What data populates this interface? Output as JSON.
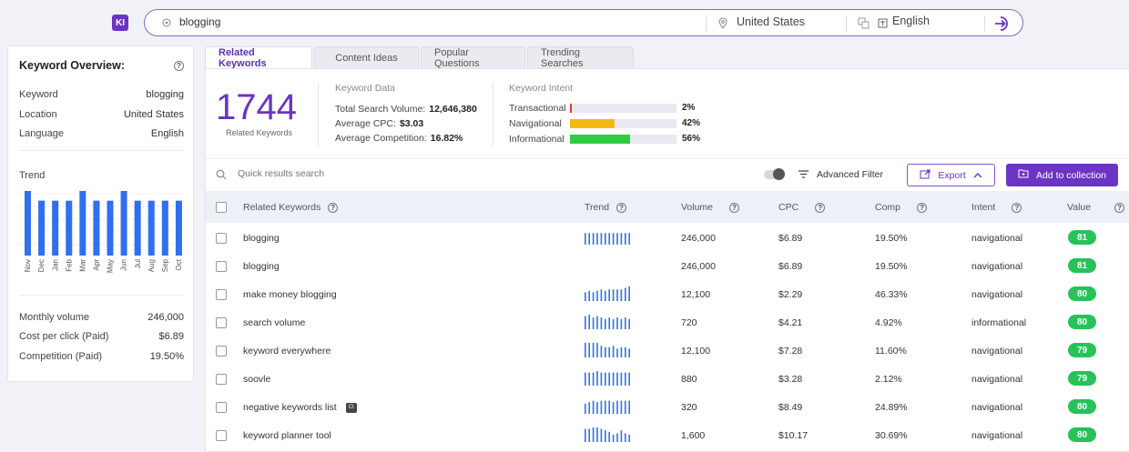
{
  "header": {
    "logo_text": "KI",
    "query": "blogging",
    "location": "United States",
    "language": "English"
  },
  "overview": {
    "title": "Keyword Overview:",
    "rows": [
      {
        "label": "Keyword",
        "value": "blogging"
      },
      {
        "label": "Location",
        "value": "United States"
      },
      {
        "label": "Language",
        "value": "English"
      }
    ],
    "trend_title": "Trend",
    "trend_months": [
      "Nov",
      "Dec",
      "Jan",
      "Feb",
      "Mar",
      "Apr",
      "May",
      "Jun",
      "Jul",
      "Aug",
      "Sep",
      "Oct"
    ],
    "trend_values": [
      100,
      85,
      85,
      85,
      100,
      85,
      85,
      100,
      85,
      85,
      85,
      85
    ],
    "metrics": [
      {
        "label": "Monthly volume",
        "value": "246,000"
      },
      {
        "label": "Cost per click (Paid)",
        "value": "$6.89"
      },
      {
        "label": "Competition (Paid)",
        "value": "19.50%"
      }
    ]
  },
  "tabs": [
    "Related Keywords",
    "Content Ideas",
    "Popular Questions",
    "Trending Searches"
  ],
  "summary": {
    "count": "1744",
    "count_label": "Related Keywords",
    "data_title": "Keyword Data",
    "data_rows": [
      {
        "label": "Total Search Volume:",
        "value": "12,646,380"
      },
      {
        "label": "Average CPC:",
        "value": "$3.03"
      },
      {
        "label": "Average Competition:",
        "value": "16.82%"
      }
    ],
    "intent_title": "Keyword Intent",
    "intent_rows": [
      {
        "label": "Transactional",
        "pct": "2%",
        "fraction": 0.02,
        "color": "#e53935"
      },
      {
        "label": "Navigational",
        "pct": "42%",
        "fraction": 0.42,
        "color": "#f5b914"
      },
      {
        "label": "Informational",
        "pct": "56%",
        "fraction": 0.56,
        "color": "#2ecc40"
      }
    ]
  },
  "toolbar": {
    "search_placeholder": "Quick results search",
    "advanced_filter": "Advanced Filter",
    "export": "Export",
    "add_collection": "Add to collection"
  },
  "table": {
    "columns": [
      "Related Keywords",
      "Trend",
      "Volume",
      "CPC",
      "Comp",
      "Intent",
      "Value"
    ],
    "rows": [
      {
        "keyword": "blogging",
        "trend": [
          8,
          8,
          8,
          8,
          8,
          8,
          8,
          8,
          8,
          8,
          8,
          8
        ],
        "volume": "246,000",
        "cpc": "$6.89",
        "comp": "19.50%",
        "intent": "navigational",
        "value": "81",
        "ci": false
      },
      {
        "keyword": "blogging",
        "trend": [],
        "volume": "246,000",
        "cpc": "$6.89",
        "comp": "19.50%",
        "intent": "navigational",
        "value": "81",
        "ci": false
      },
      {
        "keyword": "make money blogging",
        "trend": [
          6,
          7,
          6,
          7,
          8,
          7,
          8,
          8,
          8,
          8,
          9,
          10
        ],
        "volume": "12,100",
        "cpc": "$2.29",
        "comp": "46.33%",
        "intent": "navigational",
        "value": "80",
        "ci": false
      },
      {
        "keyword": "search volume",
        "trend": [
          9,
          10,
          8,
          9,
          8,
          7,
          8,
          7,
          8,
          7,
          8,
          7
        ],
        "volume": "720",
        "cpc": "$4.21",
        "comp": "4.92%",
        "intent": "informational",
        "value": "80",
        "ci": false
      },
      {
        "keyword": "keyword everywhere",
        "trend": [
          10,
          10,
          10,
          10,
          8,
          7,
          7,
          8,
          6,
          7,
          7,
          6
        ],
        "volume": "12,100",
        "cpc": "$7.28",
        "comp": "11.60%",
        "intent": "navigational",
        "value": "79",
        "ci": false
      },
      {
        "keyword": "soovle",
        "trend": [
          9,
          9,
          9,
          10,
          9,
          9,
          9,
          9,
          9,
          9,
          9,
          9
        ],
        "volume": "880",
        "cpc": "$3.28",
        "comp": "2.12%",
        "intent": "navigational",
        "value": "79",
        "ci": false
      },
      {
        "keyword": "negative keywords list",
        "trend": [
          7,
          8,
          9,
          8,
          9,
          9,
          9,
          8,
          9,
          9,
          9,
          9
        ],
        "volume": "320",
        "cpc": "$8.49",
        "comp": "24.89%",
        "intent": "navigational",
        "value": "80",
        "ci": true
      },
      {
        "keyword": "keyword planner tool",
        "trend": [
          9,
          9,
          10,
          10,
          9,
          8,
          7,
          5,
          6,
          8,
          6,
          5
        ],
        "volume": "1,600",
        "cpc": "$10.17",
        "comp": "30.69%",
        "intent": "navigational",
        "value": "80",
        "ci": false
      }
    ]
  },
  "colors": {
    "accent": "#6c34c4",
    "bar": "#2f6ff0",
    "badge": "#27c25a"
  }
}
